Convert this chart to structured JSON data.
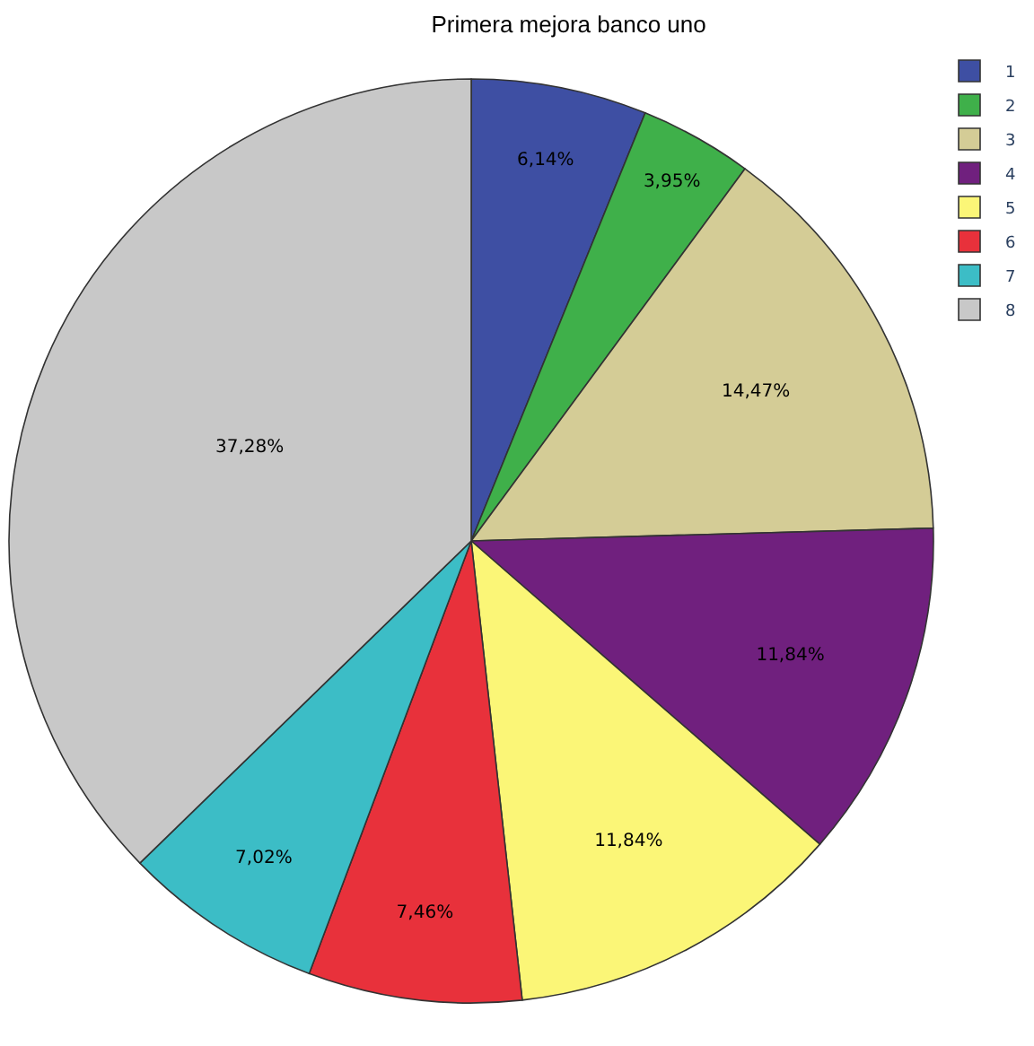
{
  "chart_data": {
    "type": "pie",
    "title": "Primera mejora banco uno",
    "categories": [
      "1",
      "2",
      "3",
      "4",
      "5",
      "6",
      "7",
      "8"
    ],
    "values": [
      6.14,
      3.95,
      14.47,
      11.84,
      11.84,
      7.46,
      7.02,
      37.28
    ],
    "value_labels": [
      "6,14%",
      "3,95%",
      "14,47%",
      "11,84%",
      "11,84%",
      "7,46%",
      "7,02%",
      "37,28%"
    ],
    "colors": [
      "#3e4fa3",
      "#3fb04a",
      "#d4cc96",
      "#70207e",
      "#fbf677",
      "#e8313b",
      "#3cbdc6",
      "#c8c8c8"
    ],
    "legend": "top right"
  }
}
